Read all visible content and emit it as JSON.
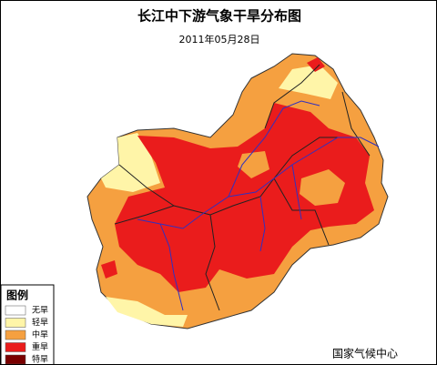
{
  "header": {
    "title": "长江中下游气象干旱分布图",
    "date": "2011年05月28日"
  },
  "legend": {
    "title": "图例",
    "items": [
      {
        "label": "无旱",
        "color": "#ffffff"
      },
      {
        "label": "轻旱",
        "color": "#fff5a8"
      },
      {
        "label": "中旱",
        "color": "#f5a040"
      },
      {
        "label": "重旱",
        "color": "#ea1c1c"
      },
      {
        "label": "特旱",
        "color": "#7a0000"
      }
    ]
  },
  "footer": {
    "source": "国家气候中心"
  }
}
